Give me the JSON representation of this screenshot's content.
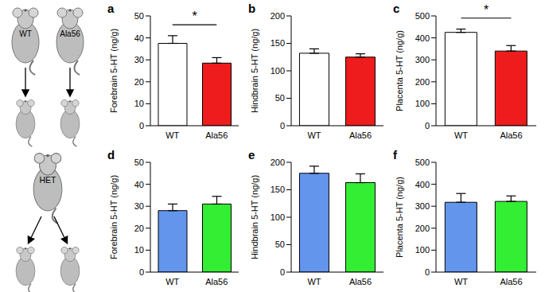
{
  "diagram": {
    "top_parents": [
      "WT",
      "Ala56"
    ],
    "bottom_parent": "HET"
  },
  "chart_data": [
    {
      "title": "a",
      "type": "bar",
      "categories": [
        "WT",
        "Ala56"
      ],
      "values": [
        37.5,
        28.5
      ],
      "errors": [
        3.5,
        2.5
      ],
      "colors": [
        "#ffffff",
        "#ee1c1c"
      ],
      "ylabel": "Forebrain 5-HT (ng/g)",
      "ylim": [
        0,
        50
      ],
      "yticks": [
        0,
        10,
        20,
        30,
        40,
        50
      ],
      "annotations": [
        "*"
      ]
    },
    {
      "title": "b",
      "type": "bar",
      "categories": [
        "WT",
        "Ala56"
      ],
      "values": [
        132,
        125
      ],
      "errors": [
        8,
        6
      ],
      "colors": [
        "#ffffff",
        "#ee1c1c"
      ],
      "ylabel": "Hindbrain 5-HT (ng/g)",
      "ylim": [
        0,
        200
      ],
      "yticks": [
        0,
        50,
        100,
        150,
        200
      ]
    },
    {
      "title": "c",
      "type": "bar",
      "categories": [
        "WT",
        "Ala56"
      ],
      "values": [
        425,
        340
      ],
      "errors": [
        15,
        25
      ],
      "colors": [
        "#ffffff",
        "#ee1c1c"
      ],
      "ylabel": "Placenta 5-HT (ng/g)",
      "ylim": [
        0,
        500
      ],
      "yticks": [
        0,
        100,
        200,
        300,
        400,
        500
      ],
      "annotations": [
        "*"
      ]
    },
    {
      "title": "d",
      "type": "bar",
      "categories": [
        "WT",
        "Ala56"
      ],
      "values": [
        28,
        31
      ],
      "errors": [
        3,
        3.5
      ],
      "colors": [
        "#6495ed",
        "#33ee33"
      ],
      "ylabel": "Forebrain 5-HT (ng/g)",
      "ylim": [
        0,
        50
      ],
      "yticks": [
        0,
        10,
        20,
        30,
        40,
        50
      ]
    },
    {
      "title": "e",
      "type": "bar",
      "categories": [
        "WT",
        "Ala56"
      ],
      "values": [
        180,
        163
      ],
      "errors": [
        13,
        16
      ],
      "colors": [
        "#6495ed",
        "#33ee33"
      ],
      "ylabel": "Hindbrain 5-HT (ng/g)",
      "ylim": [
        0,
        200
      ],
      "yticks": [
        0,
        50,
        100,
        150,
        200
      ]
    },
    {
      "title": "f",
      "type": "bar",
      "categories": [
        "WT",
        "Ala56"
      ],
      "values": [
        318,
        322
      ],
      "errors": [
        40,
        25
      ],
      "colors": [
        "#6495ed",
        "#33ee33"
      ],
      "ylabel": "Placenta 5-HT (ng/g)",
      "ylim": [
        0,
        500
      ],
      "yticks": [
        0,
        100,
        200,
        300,
        400,
        500
      ]
    }
  ]
}
